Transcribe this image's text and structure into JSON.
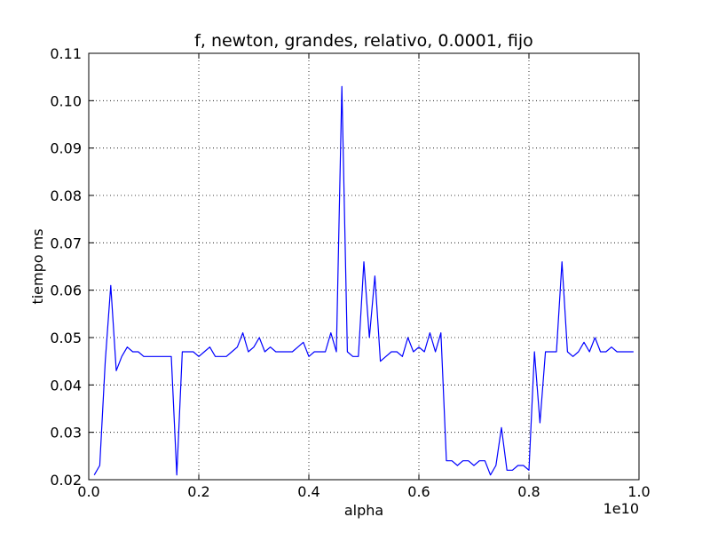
{
  "chart_data": {
    "type": "line",
    "title": "f, newton, grandes, relativo, 0.0001, fijo",
    "xlabel": "alpha",
    "ylabel": "tiempo ms",
    "x_offset_label": "1e10",
    "xlim": [
      0,
      1.0
    ],
    "ylim": [
      0.02,
      0.11
    ],
    "grid": true,
    "x_ticks": [
      0.0,
      0.2,
      0.4,
      0.6,
      0.8,
      1.0
    ],
    "x_tick_labels": [
      "0.0",
      "0.2",
      "0.4",
      "0.6",
      "0.8",
      "1.0"
    ],
    "y_ticks": [
      0.02,
      0.03,
      0.04,
      0.05,
      0.06,
      0.07,
      0.08,
      0.09,
      0.1,
      0.11
    ],
    "y_tick_labels": [
      "0.02",
      "0.03",
      "0.04",
      "0.05",
      "0.06",
      "0.07",
      "0.08",
      "0.09",
      "0.10",
      "0.11"
    ],
    "series": [
      {
        "color": "#0000ff",
        "x": [
          0.01,
          0.02,
          0.03,
          0.04,
          0.05,
          0.06,
          0.07,
          0.08,
          0.09,
          0.1,
          0.11,
          0.12,
          0.13,
          0.14,
          0.15,
          0.16,
          0.17,
          0.18,
          0.19,
          0.2,
          0.21,
          0.22,
          0.23,
          0.24,
          0.25,
          0.26,
          0.27,
          0.28,
          0.29,
          0.3,
          0.31,
          0.32,
          0.33,
          0.34,
          0.35,
          0.36,
          0.37,
          0.38,
          0.39,
          0.4,
          0.41,
          0.42,
          0.43,
          0.44,
          0.45,
          0.46,
          0.47,
          0.48,
          0.49,
          0.5,
          0.51,
          0.52,
          0.53,
          0.54,
          0.55,
          0.56,
          0.57,
          0.58,
          0.59,
          0.6,
          0.61,
          0.62,
          0.63,
          0.64,
          0.65,
          0.66,
          0.67,
          0.68,
          0.69,
          0.7,
          0.71,
          0.72,
          0.73,
          0.74,
          0.75,
          0.76,
          0.77,
          0.78,
          0.79,
          0.8,
          0.81,
          0.82,
          0.83,
          0.84,
          0.85,
          0.86,
          0.87,
          0.88,
          0.89,
          0.9,
          0.91,
          0.92,
          0.93,
          0.94,
          0.95,
          0.96,
          0.97,
          0.98,
          0.99
        ],
        "y": [
          0.021,
          0.023,
          0.045,
          0.061,
          0.043,
          0.046,
          0.048,
          0.047,
          0.047,
          0.046,
          0.046,
          0.046,
          0.046,
          0.046,
          0.046,
          0.021,
          0.047,
          0.047,
          0.047,
          0.046,
          0.047,
          0.048,
          0.046,
          0.046,
          0.046,
          0.047,
          0.048,
          0.051,
          0.047,
          0.048,
          0.05,
          0.047,
          0.048,
          0.047,
          0.047,
          0.047,
          0.047,
          0.048,
          0.049,
          0.046,
          0.047,
          0.047,
          0.047,
          0.051,
          0.047,
          0.103,
          0.047,
          0.046,
          0.046,
          0.066,
          0.05,
          0.063,
          0.045,
          0.046,
          0.047,
          0.047,
          0.046,
          0.05,
          0.047,
          0.048,
          0.047,
          0.051,
          0.047,
          0.051,
          0.024,
          0.024,
          0.023,
          0.024,
          0.024,
          0.023,
          0.024,
          0.024,
          0.021,
          0.023,
          0.031,
          0.022,
          0.022,
          0.023,
          0.023,
          0.022,
          0.047,
          0.032,
          0.047,
          0.047,
          0.047,
          0.066,
          0.047,
          0.046,
          0.047,
          0.049,
          0.047,
          0.05,
          0.047,
          0.047,
          0.048,
          0.047,
          0.047,
          0.047,
          0.047
        ]
      }
    ]
  }
}
